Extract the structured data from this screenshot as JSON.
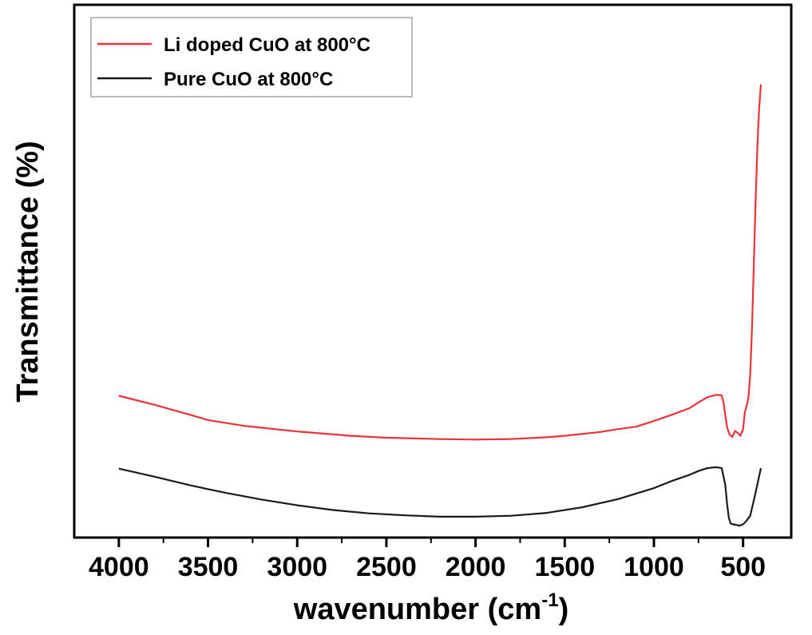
{
  "chart_data": {
    "type": "line",
    "xlabel": "wavenumber (cm",
    "xlabel_sup": "-1",
    "xlabel_close": ")",
    "ylabel": "Transmittance (%)",
    "x_reversed": true,
    "xlim": [
      4250,
      230
    ],
    "ylim": [
      0,
      100
    ],
    "xticks": [
      4000,
      3500,
      3000,
      2500,
      2000,
      1500,
      1000,
      500
    ],
    "xtick_labels": [
      "4000",
      "3500",
      "3000",
      "2500",
      "2000",
      "1500",
      "1000",
      "500"
    ],
    "y_ticks_shown": false,
    "legend_position": "top-left",
    "series": [
      {
        "name": "Li doped CuO at 800°C",
        "color": "#e8333a",
        "x": [
          4000,
          3800,
          3600,
          3500,
          3300,
          3000,
          2700,
          2500,
          2200,
          2000,
          1800,
          1600,
          1500,
          1300,
          1200,
          1100,
          1000,
          900,
          800,
          750,
          700,
          650,
          620,
          610,
          590,
          575,
          560,
          545,
          530,
          515,
          500,
          490,
          480,
          470,
          460,
          450,
          440,
          430,
          420,
          410,
          400
        ],
        "y": [
          27.6,
          25.7,
          23.6,
          22.5,
          21.3,
          20.1,
          19.2,
          18.8,
          18.5,
          18.4,
          18.5,
          18.9,
          19.2,
          20.0,
          20.6,
          21.1,
          22.3,
          23.6,
          25.0,
          26.2,
          27.3,
          27.8,
          27.7,
          26.2,
          21.0,
          19.4,
          19.0,
          20.2,
          19.8,
          19.2,
          20.6,
          24.2,
          25.5,
          27.2,
          32.0,
          42.0,
          55.0,
          68.0,
          80.0,
          88.0,
          93.0
        ]
      },
      {
        "name": "Pure CuO at 800°C",
        "color": "#1a1a1a",
        "x": [
          4000,
          3800,
          3600,
          3400,
          3200,
          3000,
          2800,
          2600,
          2400,
          2200,
          2000,
          1800,
          1600,
          1400,
          1200,
          1000,
          900,
          800,
          750,
          700,
          650,
          620,
          600,
          590,
          580,
          570,
          560,
          540,
          520,
          500,
          480,
          460,
          440,
          420,
          400
        ],
        "y": [
          12.3,
          10.6,
          8.8,
          7.2,
          5.8,
          4.6,
          3.6,
          2.9,
          2.5,
          2.2,
          2.2,
          2.4,
          3.0,
          4.2,
          5.9,
          8.2,
          9.7,
          11.0,
          11.8,
          12.4,
          12.6,
          12.4,
          9.0,
          5.0,
          2.0,
          0.8,
          0.6,
          0.5,
          0.3,
          0.6,
          1.4,
          2.4,
          5.6,
          9.0,
          12.4
        ]
      }
    ]
  }
}
